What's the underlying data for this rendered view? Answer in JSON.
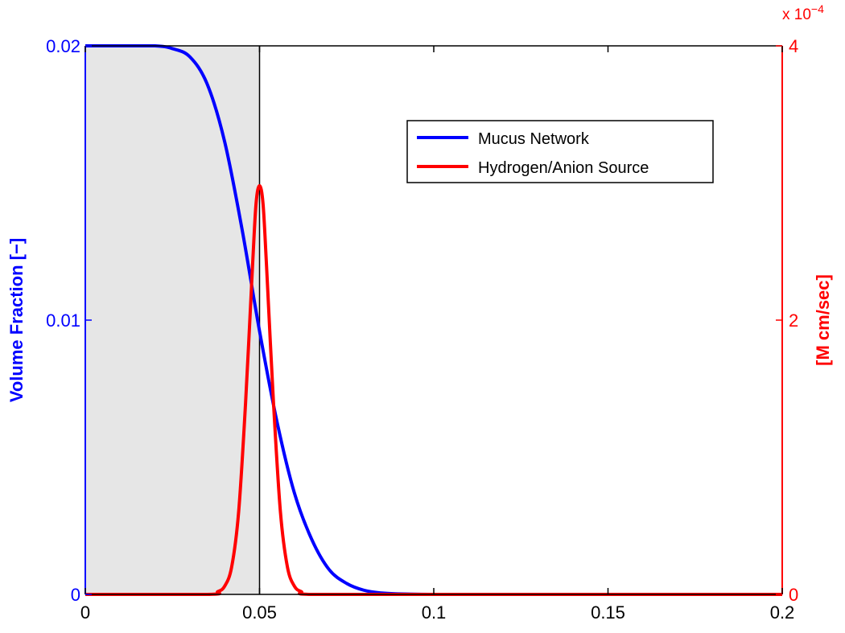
{
  "chart_data": {
    "type": "line",
    "x_axis": {
      "range": [
        0,
        0.2
      ],
      "ticks": [
        0,
        0.05,
        0.1,
        0.15,
        0.2
      ],
      "tick_labels": [
        "0",
        "0.05",
        "0.1",
        "0.15",
        "0.2"
      ],
      "label": ""
    },
    "y_left": {
      "label": "Volume Fraction [−]",
      "range": [
        0,
        0.02
      ],
      "ticks": [
        0,
        0.01,
        0.02
      ],
      "tick_labels": [
        "0",
        "0.01",
        "0.02"
      ],
      "color": "#0000ff"
    },
    "y_right": {
      "label": "[M cm/sec]",
      "range": [
        0,
        4
      ],
      "ticks": [
        0,
        2,
        4
      ],
      "tick_labels": [
        "0",
        "2",
        "4"
      ],
      "multiplier_base": "x 10",
      "multiplier_exp": "−4",
      "color": "#ff0000"
    },
    "shaded_region": {
      "x_range": [
        0,
        0.05
      ],
      "color": "#e6e6e6"
    },
    "vertical_line": {
      "x": 0.05,
      "color": "#000000"
    },
    "legend": {
      "position": "upper-right",
      "box": true
    },
    "grid": false,
    "series": [
      {
        "name": "Mucus Network",
        "axis": "left",
        "color": "#0000ff",
        "x": [
          0,
          0.01,
          0.02,
          0.025,
          0.03,
          0.035,
          0.04,
          0.045,
          0.05,
          0.055,
          0.06,
          0.065,
          0.07,
          0.075,
          0.08,
          0.085,
          0.09,
          0.1,
          0.12,
          0.15,
          0.2
        ],
        "y": [
          0.02,
          0.02,
          0.02,
          0.0199,
          0.0196,
          0.0186,
          0.0165,
          0.0133,
          0.0096,
          0.0063,
          0.0037,
          0.002,
          0.0009,
          0.0004,
          0.00015,
          5e-05,
          2e-05,
          0,
          0,
          0,
          0
        ]
      },
      {
        "name": "Hydrogen/Anion Source",
        "axis": "right",
        "color": "#ff0000",
        "x": [
          0,
          0.035,
          0.038,
          0.04,
          0.042,
          0.044,
          0.046,
          0.048,
          0.049,
          0.05,
          0.051,
          0.052,
          0.054,
          0.056,
          0.058,
          0.06,
          0.062,
          0.065,
          0.1,
          0.15,
          0.2
        ],
        "y": [
          0,
          0,
          0.02,
          0.06,
          0.2,
          0.6,
          1.4,
          2.4,
          2.85,
          2.98,
          2.85,
          2.4,
          1.4,
          0.6,
          0.2,
          0.06,
          0.02,
          0,
          0,
          0,
          0
        ]
      }
    ]
  }
}
